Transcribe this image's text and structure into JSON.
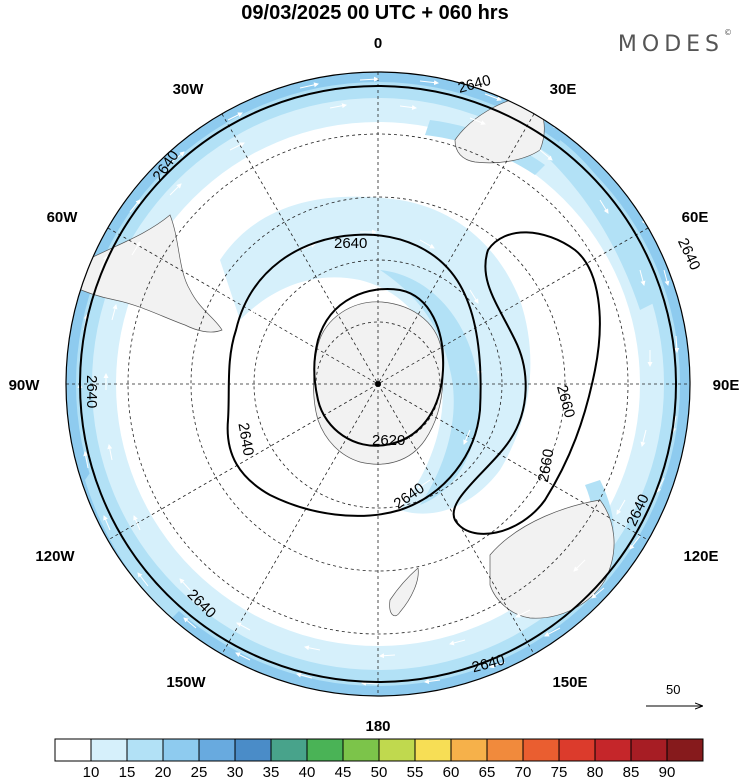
{
  "title": "09/03/2025  00 UTC  + 060 hrs",
  "brand": {
    "name": "MODES",
    "mark": "©"
  },
  "map": {
    "projection": "south-polar-stereographic",
    "lon_labels": {
      "0": "0",
      "30e": "30E",
      "60e": "60E",
      "90e": "90E",
      "120e": "120E",
      "150e": "150E",
      "180": "180",
      "150w": "150W",
      "120w": "120W",
      "90w": "90W",
      "60w": "60W",
      "30w": "30W"
    },
    "contour_labels": [
      "2640",
      "2640",
      "2640",
      "2640",
      "2640",
      "2640",
      "2640",
      "2640",
      "2640",
      "2620",
      "2660",
      "2660"
    ],
    "vector_reference": "50"
  },
  "colorbar": {
    "labels": [
      "10",
      "15",
      "20",
      "25",
      "30",
      "35",
      "40",
      "45",
      "50",
      "55",
      "60",
      "65",
      "70",
      "75",
      "80",
      "85",
      "90"
    ],
    "colors": [
      "#ffffff",
      "#d6f0fb",
      "#b2e1f6",
      "#8ecbef",
      "#68aadf",
      "#4a8cc8",
      "#48a38b",
      "#4ab356",
      "#7cc44a",
      "#c0d94e",
      "#f7de55",
      "#f6b14a",
      "#f18a3c",
      "#ea5e30",
      "#dc3b2c",
      "#c5262a",
      "#a71d24",
      "#861a1c"
    ]
  }
}
